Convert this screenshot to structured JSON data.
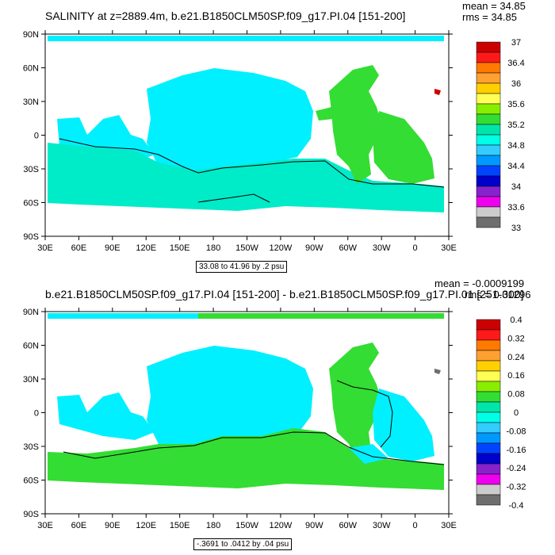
{
  "panels": [
    {
      "title": "SALINITY at z=2889.4m, b.e21.B1850CLM50SP.f09_g17.PI.04 [151-200]",
      "mean_text": "mean = 34.85",
      "rms_text": "rms = 34.85",
      "contour_note": "33.08 to 41.96 by .2 psu",
      "colorbar_labels": [
        "37",
        "36.4",
        "36",
        "35.6",
        "35.2",
        "34.8",
        "34.4",
        "34",
        "33.6",
        "33"
      ],
      "colorbar_colors": [
        "#cc0000",
        "#ff1a1a",
        "#ff7a00",
        "#ffa033",
        "#ffd000",
        "#ffff55",
        "#88ee00",
        "#33dd33",
        "#00e6aa",
        "#00ffe6",
        "#33ccff",
        "#0099ff",
        "#0044ff",
        "#0000cc",
        "#8822cc",
        "#ee00ee",
        "#cccccc",
        "#6e6e6e"
      ],
      "ocean_colors": {
        "main": "#00f0ff",
        "southern": "#00ebc8",
        "atlantic": "#33dd33",
        "hot_spot": "#cc0000"
      }
    },
    {
      "title": "b.e21.B1850CLM50SP.f09_g17.PI.04 [151-200] - b.e21.B1850CLM50SP.f09_g17.PI.01 [251-300]",
      "mean_text": "mean = -0.0009199",
      "rms_text": "rms = 0.01296",
      "contour_note": "-.3691 to .0412 by .04 psu",
      "colorbar_labels": [
        "0.4",
        "0.32",
        "0.24",
        "0.16",
        "0.08",
        "0",
        "-0.08",
        "-0.16",
        "-0.24",
        "-0.32",
        "-0.4"
      ],
      "colorbar_colors": [
        "#cc0000",
        "#ff1a1a",
        "#ff7a00",
        "#ffa033",
        "#ffd000",
        "#ffff55",
        "#88ee00",
        "#33dd33",
        "#00e6aa",
        "#00ffe6",
        "#33ccff",
        "#0099ff",
        "#0044ff",
        "#0000cc",
        "#8822cc",
        "#ee00ee",
        "#cccccc",
        "#6e6e6e"
      ],
      "ocean_colors": {
        "main": "#00f0ff",
        "southern": "#33dd33",
        "atlantic": "#33dd33",
        "hot_spot": "#6e6e6e"
      }
    }
  ],
  "axes": {
    "lat_labels": [
      "90N",
      "60N",
      "30N",
      "0",
      "30S",
      "60S",
      "90S"
    ],
    "lon_labels": [
      "30E",
      "60E",
      "90E",
      "120E",
      "150E",
      "180",
      "150W",
      "120W",
      "90W",
      "60W",
      "30W",
      "0",
      "30E"
    ]
  }
}
